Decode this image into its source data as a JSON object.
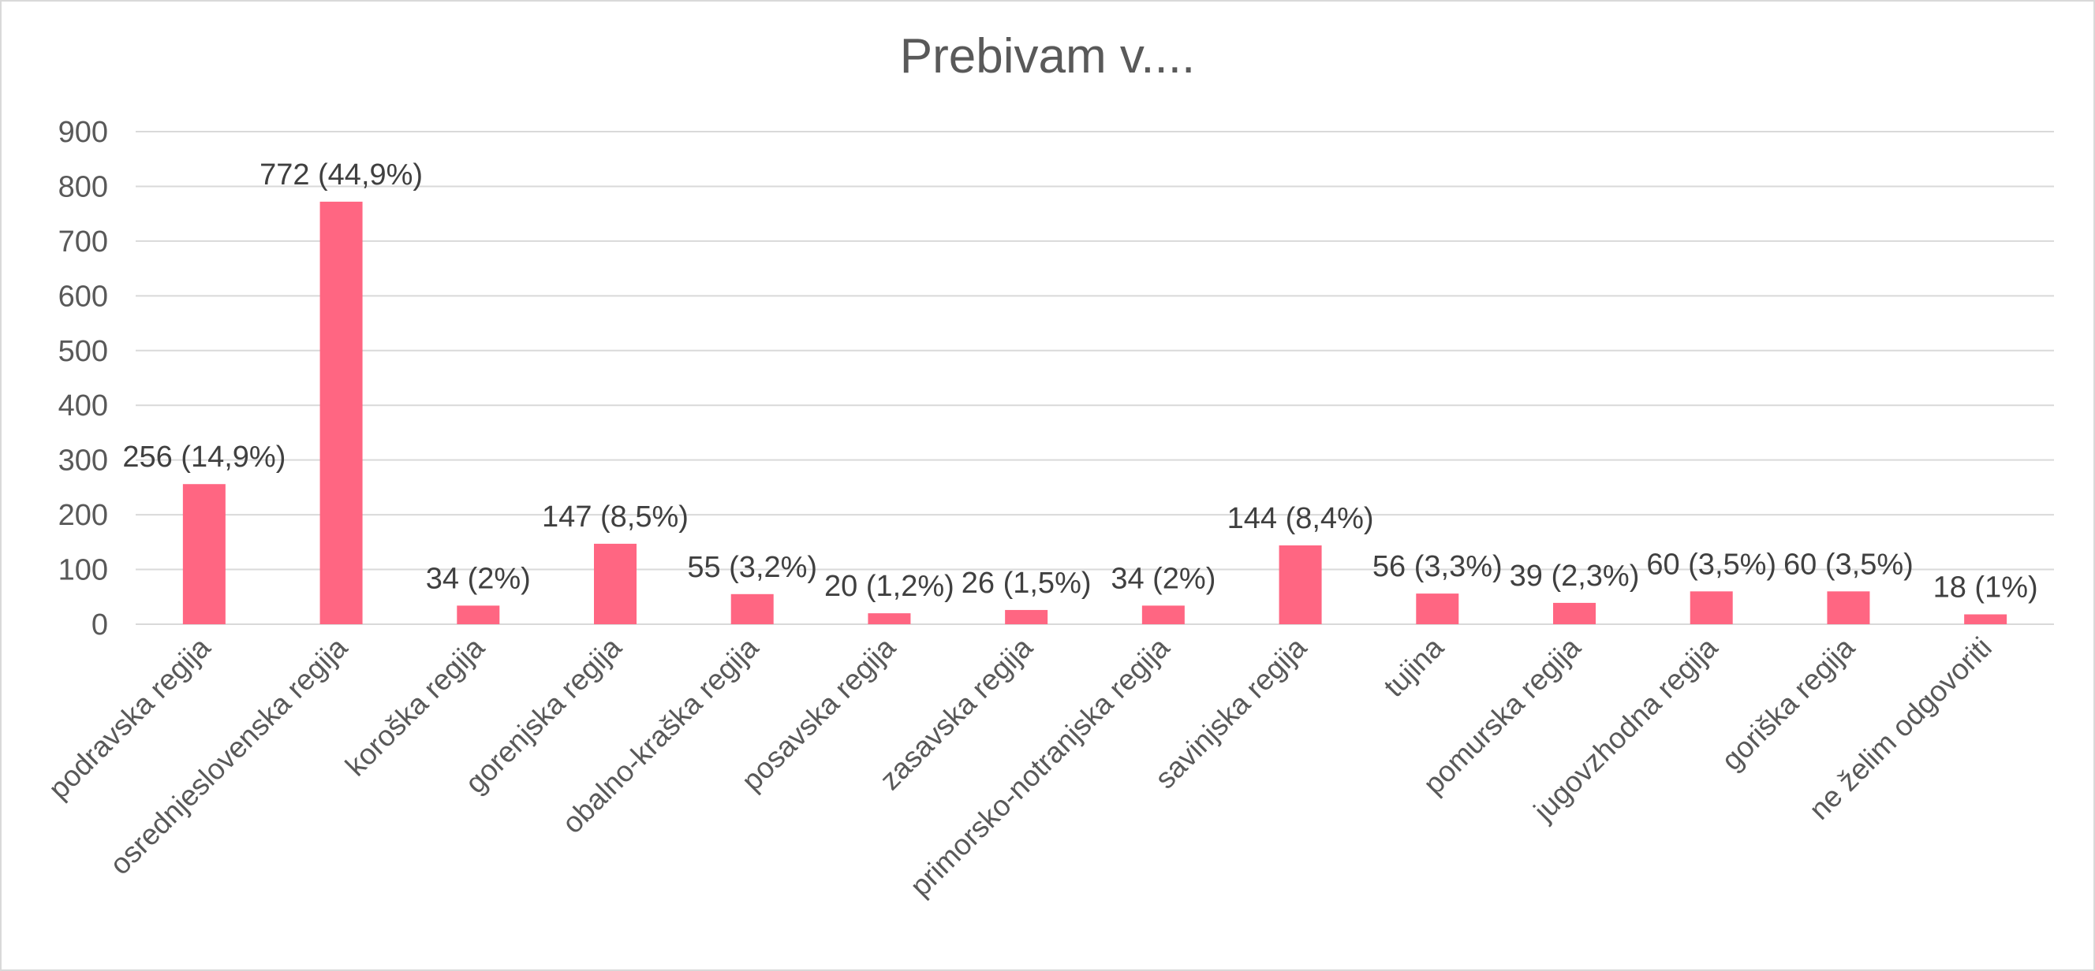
{
  "chart_data": {
    "type": "bar",
    "title": "Prebivam v....",
    "xlabel": "",
    "ylabel": "",
    "ylim": [
      0,
      900
    ],
    "yticks": [
      0,
      100,
      200,
      300,
      400,
      500,
      600,
      700,
      800,
      900
    ],
    "grid": true,
    "legend": "none",
    "bar_color": "#ff6682",
    "categories": [
      "podravska regija",
      "osrednjeslovenska regija",
      "koroška regija",
      "gorenjska regija",
      "obalno-kraška regija",
      "posavska regija",
      "zasavska regija",
      "primorsko-notranjska regija",
      "savinjska regija",
      "tujina",
      "pomurska regija",
      "jugovzhodna regija",
      "goriška regija",
      "ne želim odgovoriti"
    ],
    "values": [
      256,
      772,
      34,
      147,
      55,
      20,
      26,
      34,
      144,
      56,
      39,
      60,
      60,
      18
    ],
    "data_labels": [
      "256 (14,9%)",
      "772 (44,9%)",
      "34 (2%)",
      "147 (8,5%)",
      "55 (3,2%)",
      "20 (1,2%)",
      "26 (1,5%)",
      "34 (2%)",
      "144 (8,4%)",
      "56 (3,3%)",
      "39 (2,3%)",
      "60 (3,5%)",
      "60 (3,5%)",
      "18 (1%)"
    ]
  }
}
